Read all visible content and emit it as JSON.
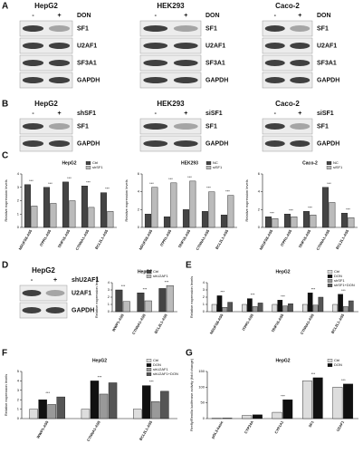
{
  "panel_labels": [
    "A",
    "B",
    "C",
    "D",
    "E",
    "F",
    "G"
  ],
  "blots": [
    {
      "title": "HepG2",
      "lanes": [
        "-",
        "+"
      ],
      "treatment": "DON",
      "proteins": [
        "SF1",
        "U2AF1",
        "SF3A1",
        "GAPDH"
      ]
    },
    {
      "title": "HEK293",
      "lanes": [
        "-",
        "+"
      ],
      "treatment": "DON",
      "proteins": [
        "SF1",
        "U2AF1",
        "SF3A1",
        "GAPDH"
      ]
    },
    {
      "title": "Caco-2",
      "lanes": [
        "-",
        "+"
      ],
      "treatment": "DON",
      "proteins": [
        "SF1",
        "U2AF1",
        "SF3A1",
        "GAPDH"
      ]
    },
    {
      "title": "HepG2",
      "lanes": [
        "-",
        "+"
      ],
      "treatment": "shSF1",
      "proteins": [
        "SF1",
        "GAPDH"
      ]
    },
    {
      "title": "HEK293",
      "lanes": [
        "-",
        "+"
      ],
      "treatment": "siSF1",
      "proteins": [
        "SF1",
        "GAPDH"
      ]
    },
    {
      "title": "Caco-2",
      "lanes": [
        "-",
        "+"
      ],
      "treatment": "siSF1",
      "proteins": [
        "SF1",
        "GAPDH"
      ]
    },
    {
      "title": "HepG2",
      "lanes": [
        "-",
        "+"
      ],
      "treatment": "shU2AF1",
      "proteins": [
        "U2AF1",
        "GAPDH"
      ]
    }
  ],
  "chart_data": [
    {
      "type": "bar",
      "title": "HepG2",
      "y_label": "Relative expression levels",
      "categories": [
        "NDUFS8-AS5",
        "ITPR1-AS5",
        "TRIP15-AS5",
        "CTNNA1-AS5",
        "BCL2L1-AS5"
      ],
      "series": [
        {
          "name": "Ctrl",
          "color": "#444444",
          "values": [
            3.2,
            3.0,
            3.4,
            3.1,
            2.6
          ]
        },
        {
          "name": "shSF1",
          "color": "#bbbbbb",
          "values": [
            1.6,
            1.8,
            2.0,
            1.5,
            1.2
          ]
        }
      ],
      "significance": [
        "***",
        "***",
        "***",
        "***",
        "***"
      ],
      "ylim": [
        0,
        4
      ],
      "yticks": [
        0,
        1,
        2,
        3,
        4
      ]
    },
    {
      "type": "bar",
      "title": "HEK293",
      "y_label": "Relative expression levels",
      "categories": [
        "NDUFS8-AS5",
        "ITPR1-AS5",
        "TRIP15-AS5",
        "CTNNA1-AS5",
        "BCL2L1-AS5"
      ],
      "series": [
        {
          "name": "NC",
          "color": "#444444",
          "values": [
            1.5,
            1.2,
            2.0,
            1.8,
            1.4
          ]
        },
        {
          "name": "siSF1",
          "color": "#bbbbbb",
          "values": [
            4.5,
            5.0,
            5.2,
            4.0,
            3.6
          ]
        }
      ],
      "significance": [
        "***",
        "***",
        "***",
        "***",
        "***"
      ],
      "ylim": [
        0,
        6
      ],
      "yticks": [
        0,
        2,
        4,
        6
      ]
    },
    {
      "type": "bar",
      "title": "Caco-2",
      "y_label": "Relative expression levels",
      "categories": [
        "NDUFS8-AS5",
        "ITPR1-AS5",
        "TRIP15-AS5",
        "CTNNA1-AS5",
        "BCL2L1-AS5"
      ],
      "series": [
        {
          "name": "NC",
          "color": "#444444",
          "values": [
            1.2,
            1.5,
            1.8,
            4.5,
            1.6
          ]
        },
        {
          "name": "siSF1",
          "color": "#bbbbbb",
          "values": [
            1.0,
            1.2,
            1.4,
            2.8,
            1.1
          ]
        }
      ],
      "significance": [
        "***",
        "***",
        "***",
        "***",
        "***"
      ],
      "ylim": [
        0,
        6
      ],
      "yticks": [
        0,
        2,
        4,
        6
      ]
    },
    {
      "type": "bar",
      "title": "HepG2",
      "y_label": "Relative expression levels",
      "categories": [
        "WWP1-AS5",
        "CTNNA1-AS5",
        "BCL2L1-AS5"
      ],
      "series": [
        {
          "name": "Ctrl",
          "color": "#444444",
          "values": [
            3.0,
            2.6,
            3.2
          ]
        },
        {
          "name": "shU2AF1",
          "color": "#bbbbbb",
          "values": [
            1.4,
            1.5,
            3.6
          ]
        }
      ],
      "significance": [
        "***",
        "***",
        "***"
      ],
      "ylim": [
        0,
        4
      ],
      "yticks": [
        0,
        1,
        2,
        3,
        4
      ]
    },
    {
      "type": "bar",
      "title": "HepG2",
      "y_label": "Relative expression levels",
      "categories": [
        "NDUFS8-AS5",
        "ITPR1-AS5",
        "TRIP15-AS5",
        "CTNNA1-AS5",
        "BCL2L1-AS5"
      ],
      "series": [
        {
          "name": "Ctrl",
          "color": "#dddddd",
          "values": [
            1,
            1,
            1,
            1,
            1
          ]
        },
        {
          "name": "DON",
          "color": "#111111",
          "values": [
            2.2,
            1.8,
            1.6,
            2.6,
            2.4
          ]
        },
        {
          "name": "shSF1",
          "color": "#999999",
          "values": [
            0.6,
            0.7,
            0.8,
            0.9,
            0.7
          ]
        },
        {
          "name": "shSF1+DON",
          "color": "#555555",
          "values": [
            1.3,
            1.2,
            1.1,
            2.0,
            1.5
          ]
        }
      ],
      "significance": [
        "***",
        "***",
        "***",
        "***",
        "***"
      ],
      "ylim": [
        0,
        4
      ],
      "yticks": [
        0,
        1,
        2,
        3,
        4
      ]
    },
    {
      "type": "bar",
      "title": "HepG2",
      "y_label": "Relative expression levels",
      "categories": [
        "WWP1-AS5",
        "CTNNA1-AS5",
        "BCL2L1-AS5"
      ],
      "series": [
        {
          "name": "Ctrl",
          "color": "#dddddd",
          "values": [
            1,
            1,
            1
          ]
        },
        {
          "name": "DON",
          "color": "#111111",
          "values": [
            2.0,
            4.0,
            3.5
          ]
        },
        {
          "name": "shU2AF1",
          "color": "#999999",
          "values": [
            1.5,
            2.6,
            1.8
          ]
        },
        {
          "name": "shU2AF1+DON",
          "color": "#555555",
          "values": [
            2.3,
            3.8,
            2.9
          ]
        }
      ],
      "significance": [
        "***",
        "***",
        "***"
      ],
      "ylim": [
        0,
        5
      ],
      "yticks": [
        0,
        1,
        2,
        3,
        4,
        5
      ]
    },
    {
      "type": "bar",
      "title": "HepG2",
      "y_label": "Firefly/Renilla luciferase activity (fold change)",
      "categories": [
        "pGL3-basic",
        "CYP24A",
        "CYP1A1",
        "SF1",
        "U2AF1"
      ],
      "series": [
        {
          "name": "Ctrl",
          "color": "#dddddd",
          "values": [
            1,
            10,
            20,
            120,
            100
          ]
        },
        {
          "name": "DON",
          "color": "#111111",
          "values": [
            1.5,
            12,
            60,
            130,
            110
          ]
        }
      ],
      "significance": [
        null,
        null,
        "***",
        "***",
        "***"
      ],
      "ylim": [
        0,
        150
      ],
      "yticks": [
        0,
        50,
        100,
        150
      ]
    }
  ]
}
